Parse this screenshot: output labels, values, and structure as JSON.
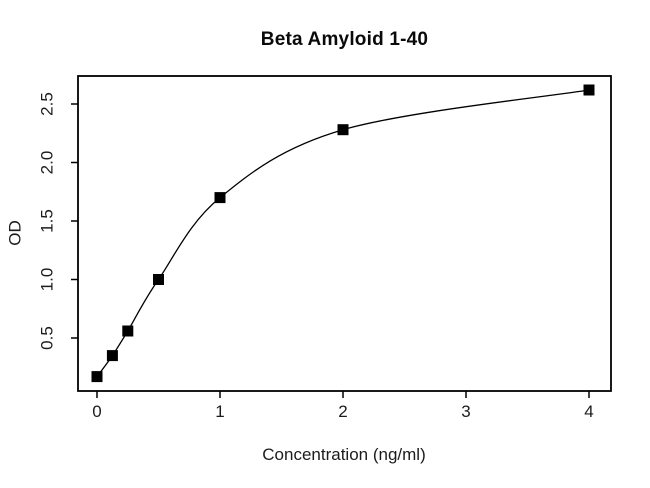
{
  "chart": {
    "title": "Beta Amyloid 1-40",
    "x_axis_label": "Concentration (ng/ml)",
    "y_axis_label": "OD"
  },
  "chart_data": {
    "type": "line",
    "title": "Beta Amyloid 1-40",
    "xlabel": "Concentration (ng/ml)",
    "ylabel": "OD",
    "x": [
      0,
      0.125,
      0.25,
      0.5,
      1,
      2,
      4
    ],
    "y": [
      0.17,
      0.35,
      0.56,
      1.0,
      1.7,
      2.28,
      2.62
    ],
    "x_tick_values": [
      0,
      1,
      2,
      3,
      4
    ],
    "x_tick_labels": [
      "0",
      "1",
      "2",
      "3",
      "4"
    ],
    "y_tick_values": [
      0.5,
      1.0,
      1.5,
      2.0,
      2.5
    ],
    "y_tick_labels": [
      "0.5",
      "1.0",
      "1.5",
      "2.0",
      "2.5"
    ],
    "xlim": [
      -0.15,
      4.18
    ],
    "ylim": [
      0.05,
      2.74
    ],
    "grid": false,
    "legend": null,
    "marker": "filled-square",
    "curve": "smooth-fit",
    "line_color": "#000000",
    "marker_color": "#000000",
    "axis_color": "#000000",
    "background_color": "#ffffff"
  }
}
